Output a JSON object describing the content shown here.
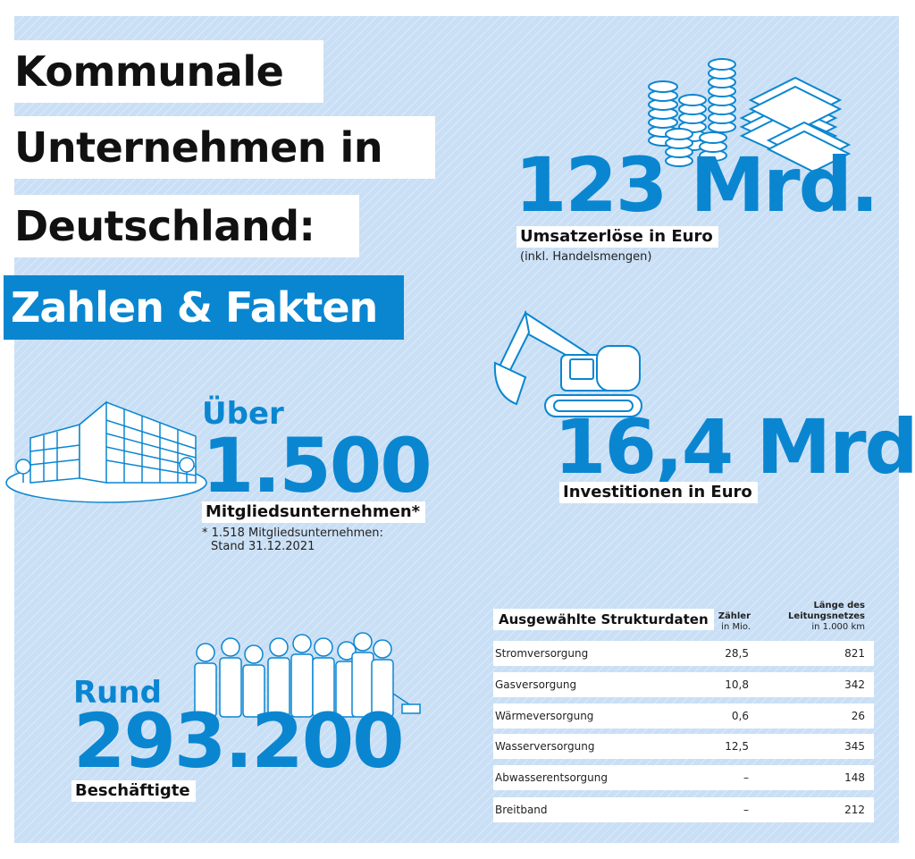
{
  "title": {
    "line1": "Kommunale",
    "line2": "Unternehmen in",
    "line3": "Deutschland:",
    "line4": "Zahlen & Fakten"
  },
  "revenue": {
    "value": "123 Mrd.",
    "label": "Umsatzerlöse in Euro",
    "note": "(inkl. Handelsmengen)"
  },
  "investments": {
    "value": "16,4 Mrd.",
    "label": "Investitionen in Euro"
  },
  "members": {
    "prefix": "Über",
    "value": "1.500",
    "label": "Mitgliedsunternehmen*",
    "note_line1": "* 1.518 Mitgliedsunternehmen:",
    "note_line2": "Stand 31.12.2021"
  },
  "employees": {
    "prefix": "Rund",
    "value": "293.200",
    "label": "Beschäftigte"
  },
  "table": {
    "title": "Ausgewählte Strukturdaten",
    "col2_line1": "Zähler",
    "col2_line2": "in Mio.",
    "col3_line1": "Länge des",
    "col3_line2": "Leitungsnetzes",
    "col3_line3": "in 1.000 km",
    "rows": [
      {
        "name": "Stromversorgung",
        "counter": "28,5",
        "length": "821"
      },
      {
        "name": "Gasversorgung",
        "counter": "10,8",
        "length": "342"
      },
      {
        "name": "Wärmeversorgung",
        "counter": "0,6",
        "length": "26"
      },
      {
        "name": "Wasserversorgung",
        "counter": "12,5",
        "length": "345"
      },
      {
        "name": "Abwasserentsorgung",
        "counter": "–",
        "length": "148"
      },
      {
        "name": "Breitband",
        "counter": "–",
        "length": "212"
      }
    ]
  },
  "icons": {
    "money": "coins-and-banknotes-icon",
    "excavator": "excavator-icon",
    "building": "office-building-icon",
    "people": "people-group-icon"
  },
  "colors": {
    "accent": "#0a86d1",
    "background": "#c9dff5"
  }
}
